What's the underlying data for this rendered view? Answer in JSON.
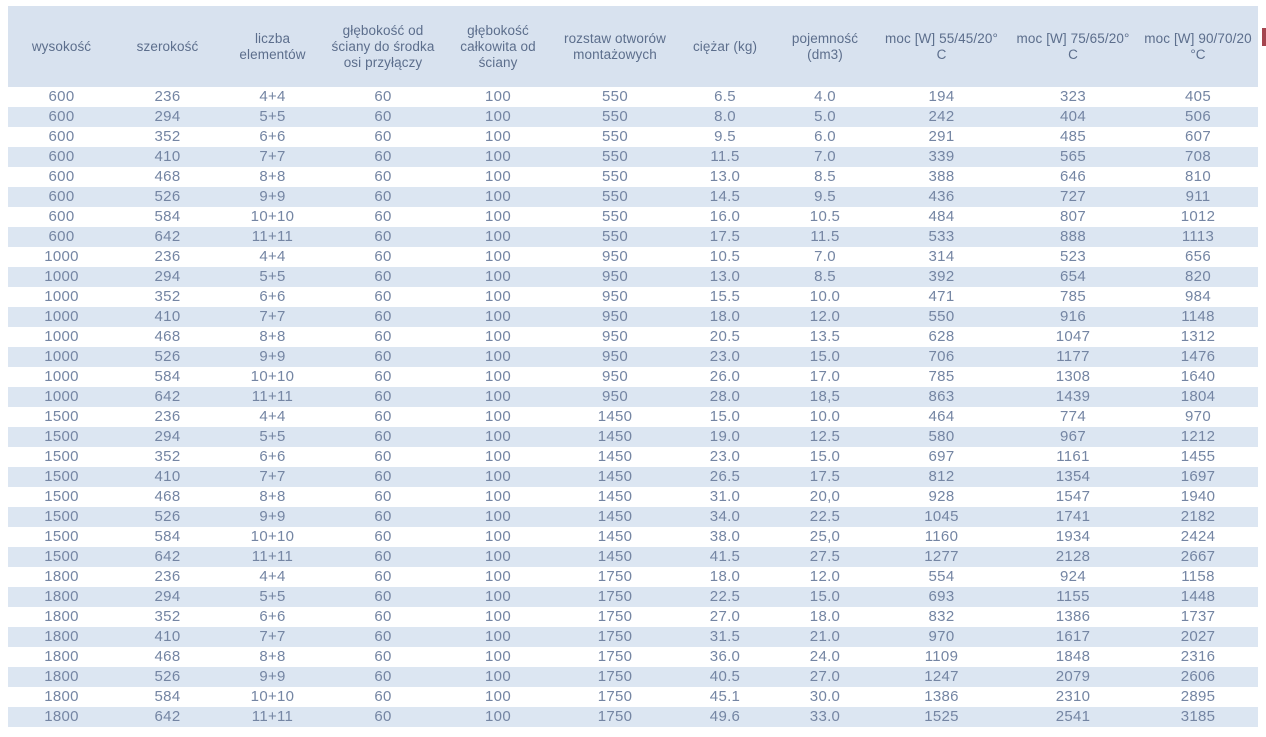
{
  "table": {
    "columns": [
      {
        "id": "wysokosc",
        "label": "wysokość"
      },
      {
        "id": "szerokosc",
        "label": "szerokość"
      },
      {
        "id": "liczba-elementow",
        "label": "liczba elementów"
      },
      {
        "id": "glebokosc-od-sciany",
        "label": "głębokość od ściany do środka osi przyłączy"
      },
      {
        "id": "glebokosc-calkowita",
        "label": "głębokość całkowita od ściany"
      },
      {
        "id": "rozstaw-otworow",
        "label": "rozstaw otworów montażowych"
      },
      {
        "id": "ciezar",
        "label": "ciężar (kg)"
      },
      {
        "id": "pojemnosc",
        "label": "pojemność (dm3)"
      },
      {
        "id": "moc-55-45-20",
        "label": "moc [W] 55/45/20° C"
      },
      {
        "id": "moc-75-65-20",
        "label": "moc [W] 75/65/20° C"
      },
      {
        "id": "moc-90-70-20",
        "label": "moc [W] 90/70/20 °C"
      }
    ],
    "rows": [
      [
        "600",
        "236",
        "4+4",
        "60",
        "100",
        "550",
        "6.5",
        "4.0",
        "194",
        "323",
        "405"
      ],
      [
        "600",
        "294",
        "5+5",
        "60",
        "100",
        "550",
        "8.0",
        "5.0",
        "242",
        "404",
        "506"
      ],
      [
        "600",
        "352",
        "6+6",
        "60",
        "100",
        "550",
        "9.5",
        "6.0",
        "291",
        "485",
        "607"
      ],
      [
        "600",
        "410",
        "7+7",
        "60",
        "100",
        "550",
        "11.5",
        "7.0",
        "339",
        "565",
        "708"
      ],
      [
        "600",
        "468",
        "8+8",
        "60",
        "100",
        "550",
        "13.0",
        "8.5",
        "388",
        "646",
        "810"
      ],
      [
        "600",
        "526",
        "9+9",
        "60",
        "100",
        "550",
        "14.5",
        "9.5",
        "436",
        "727",
        "911"
      ],
      [
        "600",
        "584",
        "10+10",
        "60",
        "100",
        "550",
        "16.0",
        "10.5",
        "484",
        "807",
        "1012"
      ],
      [
        "600",
        "642",
        "11+11",
        "60",
        "100",
        "550",
        "17.5",
        "11.5",
        "533",
        "888",
        "1113"
      ],
      [
        "1000",
        "236",
        "4+4",
        "60",
        "100",
        "950",
        "10.5",
        "7.0",
        "314",
        "523",
        "656"
      ],
      [
        "1000",
        "294",
        "5+5",
        "60",
        "100",
        "950",
        "13.0",
        "8.5",
        "392",
        "654",
        "820"
      ],
      [
        "1000",
        "352",
        "6+6",
        "60",
        "100",
        "950",
        "15.5",
        "10.0",
        "471",
        "785",
        "984"
      ],
      [
        "1000",
        "410",
        "7+7",
        "60",
        "100",
        "950",
        "18.0",
        "12.0",
        "550",
        "916",
        "1148"
      ],
      [
        "1000",
        "468",
        "8+8",
        "60",
        "100",
        "950",
        "20.5",
        "13.5",
        "628",
        "1047",
        "1312"
      ],
      [
        "1000",
        "526",
        "9+9",
        "60",
        "100",
        "950",
        "23.0",
        "15.0",
        "706",
        "1177",
        "1476"
      ],
      [
        "1000",
        "584",
        "10+10",
        "60",
        "100",
        "950",
        "26.0",
        "17.0",
        "785",
        "1308",
        "1640"
      ],
      [
        "1000",
        "642",
        "11+11",
        "60",
        "100",
        "950",
        "28.0",
        "18,5",
        "863",
        "1439",
        "1804"
      ],
      [
        "1500",
        "236",
        "4+4",
        "60",
        "100",
        "1450",
        "15.0",
        "10.0",
        "464",
        "774",
        "970"
      ],
      [
        "1500",
        "294",
        "5+5",
        "60",
        "100",
        "1450",
        "19.0",
        "12.5",
        "580",
        "967",
        "1212"
      ],
      [
        "1500",
        "352",
        "6+6",
        "60",
        "100",
        "1450",
        "23.0",
        "15.0",
        "697",
        "1161",
        "1455"
      ],
      [
        "1500",
        "410",
        "7+7",
        "60",
        "100",
        "1450",
        "26.5",
        "17.5",
        "812",
        "1354",
        "1697"
      ],
      [
        "1500",
        "468",
        "8+8",
        "60",
        "100",
        "1450",
        "31.0",
        "20,0",
        "928",
        "1547",
        "1940"
      ],
      [
        "1500",
        "526",
        "9+9",
        "60",
        "100",
        "1450",
        "34.0",
        "22.5",
        "1045",
        "1741",
        "2182"
      ],
      [
        "1500",
        "584",
        "10+10",
        "60",
        "100",
        "1450",
        "38.0",
        "25,0",
        "1160",
        "1934",
        "2424"
      ],
      [
        "1500",
        "642",
        "11+11",
        "60",
        "100",
        "1450",
        "41.5",
        "27.5",
        "1277",
        "2128",
        "2667"
      ],
      [
        "1800",
        "236",
        "4+4",
        "60",
        "100",
        "1750",
        "18.0",
        "12.0",
        "554",
        "924",
        "1158"
      ],
      [
        "1800",
        "294",
        "5+5",
        "60",
        "100",
        "1750",
        "22.5",
        "15.0",
        "693",
        "1155",
        "1448"
      ],
      [
        "1800",
        "352",
        "6+6",
        "60",
        "100",
        "1750",
        "27.0",
        "18.0",
        "832",
        "1386",
        "1737"
      ],
      [
        "1800",
        "410",
        "7+7",
        "60",
        "100",
        "1750",
        "31.5",
        "21.0",
        "970",
        "1617",
        "2027"
      ],
      [
        "1800",
        "468",
        "8+8",
        "60",
        "100",
        "1750",
        "36.0",
        "24.0",
        "1109",
        "1848",
        "2316"
      ],
      [
        "1800",
        "526",
        "9+9",
        "60",
        "100",
        "1750",
        "40.5",
        "27.0",
        "1247",
        "2079",
        "2606"
      ],
      [
        "1800",
        "584",
        "10+10",
        "60",
        "100",
        "1750",
        "45.1",
        "30.0",
        "1386",
        "2310",
        "2895"
      ],
      [
        "1800",
        "642",
        "11+11",
        "60",
        "100",
        "1750",
        "49.6",
        "33.0",
        "1525",
        "2541",
        "3185"
      ]
    ]
  },
  "colors": {
    "header_bg": "#d8e2ef",
    "stripe_bg": "#dce6f2",
    "header_text": "#5c6e8c",
    "body_text": "#7485a3",
    "edge_fragment": "#a4454f"
  }
}
